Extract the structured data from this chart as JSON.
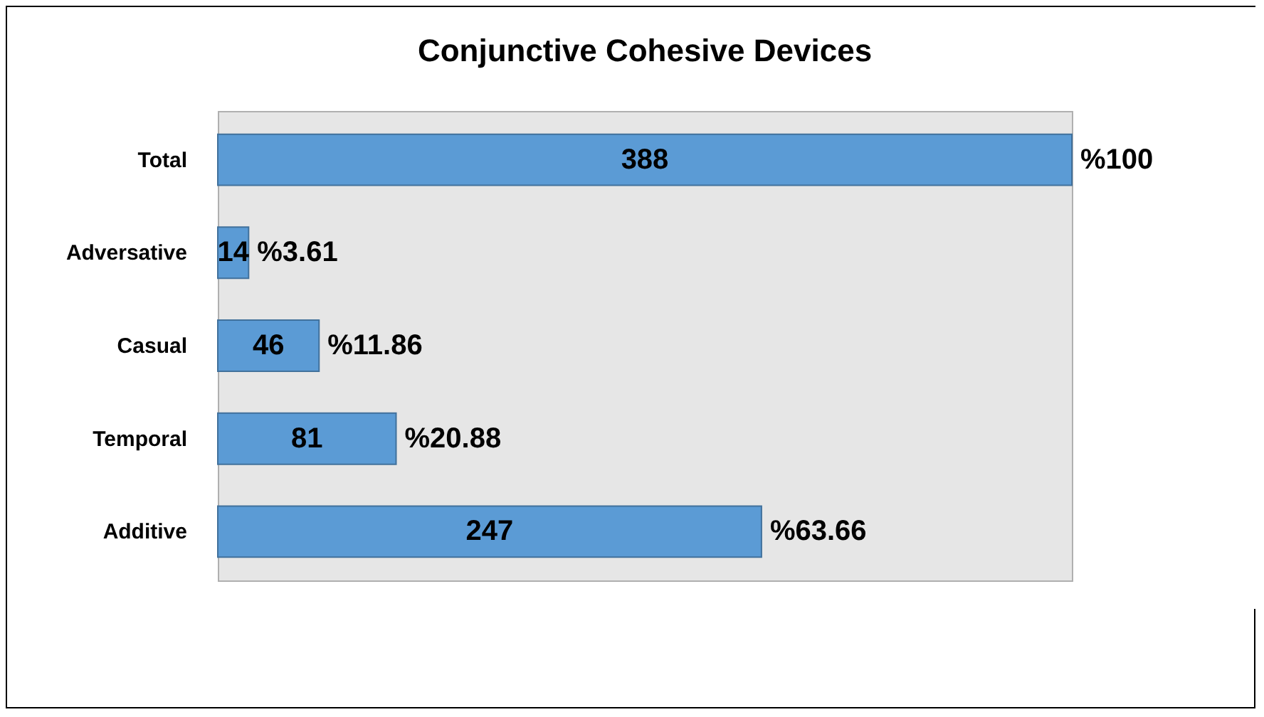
{
  "chart_data": {
    "type": "bar",
    "orientation": "horizontal",
    "title": "Conjunctive Cohesive Devices",
    "categories": [
      "Total",
      "Adversative",
      "Casual",
      "Temporal",
      "Additive"
    ],
    "series": [
      {
        "color": "#5b9bd5",
        "values": [
          388,
          14,
          46,
          81,
          247
        ]
      }
    ],
    "xlim": [
      0,
      388
    ],
    "data_labels": true,
    "annotations": [
      {
        "text": "%100",
        "x": 388,
        "y": "Total"
      },
      {
        "text": "%3.61",
        "x": 14,
        "y": "Adversative"
      },
      {
        "text": "%11.86",
        "x": 46,
        "y": "Casual"
      },
      {
        "text": "%20.88",
        "x": 81,
        "y": "Temporal"
      },
      {
        "text": "%63.66",
        "x": 247,
        "y": "Additive"
      }
    ],
    "legend": false
  }
}
